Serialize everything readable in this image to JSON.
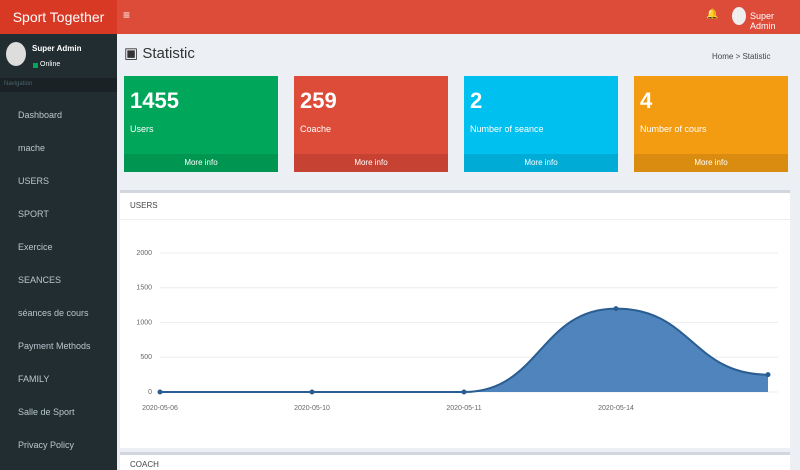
{
  "header": {
    "brand": "Sport Together",
    "user": "Super Admin"
  },
  "sidebar": {
    "user": "Super Admin",
    "status": "Online",
    "section": "Navigation",
    "items": [
      "Dashboard",
      "mache",
      "USERS",
      "SPORT",
      "Exercice",
      "SEANCES",
      "séances de cours",
      "Payment Methods",
      "FAMILY",
      "Salle de Sport",
      "Privacy Policy"
    ]
  },
  "page": {
    "title": "Statistic",
    "breadcrumb": [
      "Home",
      "Statistic"
    ]
  },
  "stats": [
    {
      "value": 1455,
      "label": "Users",
      "link": "More info",
      "color": "#00a65a"
    },
    {
      "value": 259,
      "label": "Coache",
      "link": "More info",
      "color": "#dd4b39"
    },
    {
      "value": 2,
      "label": "Number of seance",
      "link": "More info",
      "color": "#00c0ef"
    },
    {
      "value": 4,
      "label": "Number of cours",
      "link": "More info",
      "color": "#f39c12"
    }
  ],
  "chart": {
    "type": "area",
    "title": "USERS",
    "x": [
      "2020-05-06",
      "2020-05-10",
      "2020-05-11",
      "2020-05-14",
      null
    ],
    "values": [
      0,
      0,
      0,
      1200,
      250
    ],
    "color": "#3c78b5",
    "ylim": [
      0,
      2000
    ],
    "yticks": [
      0,
      500,
      1000,
      1500,
      2000
    ],
    "grid": true
  },
  "next_box": {
    "title": "COACH"
  }
}
